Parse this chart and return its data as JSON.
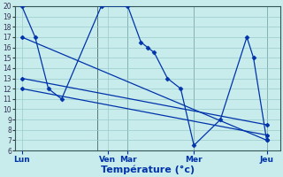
{
  "background_color": "#c8ecec",
  "grid_color": "#99cccc",
  "line_color": "#0033aa",
  "ylim": [
    6,
    20
  ],
  "xlim": [
    0,
    20
  ],
  "yticks": [
    6,
    7,
    8,
    9,
    10,
    11,
    12,
    13,
    14,
    15,
    16,
    17,
    18,
    19,
    20
  ],
  "xlabel": "Température (°c)",
  "xlabel_fontsize": 8,
  "xtick_labels": [
    "Lun",
    "Ven",
    "Mar",
    "Mer",
    "Jeu"
  ],
  "xtick_positions": [
    0.5,
    7.0,
    8.5,
    13.5,
    19.0
  ],
  "vlines": [
    0.0,
    6.2,
    8.5,
    13.5,
    19.0
  ],
  "main_series_x": [
    0.5,
    1.5,
    2.5,
    3.5,
    6.5,
    8.5,
    9.5,
    10.0,
    10.5,
    11.5,
    12.5,
    13.5,
    15.5,
    17.5,
    18.0,
    19.0
  ],
  "main_series_y": [
    20,
    17,
    12,
    11,
    20,
    20,
    16.5,
    16,
    15.5,
    13,
    12,
    6.5,
    9,
    17,
    15,
    7
  ],
  "trend1_x": [
    0.5,
    19.0
  ],
  "trend1_y": [
    17,
    7
  ],
  "trend2_x": [
    0.5,
    19.0
  ],
  "trend2_y": [
    13,
    8.5
  ],
  "trend3_x": [
    0.5,
    19.0
  ],
  "trend3_y": [
    12,
    7.5
  ]
}
